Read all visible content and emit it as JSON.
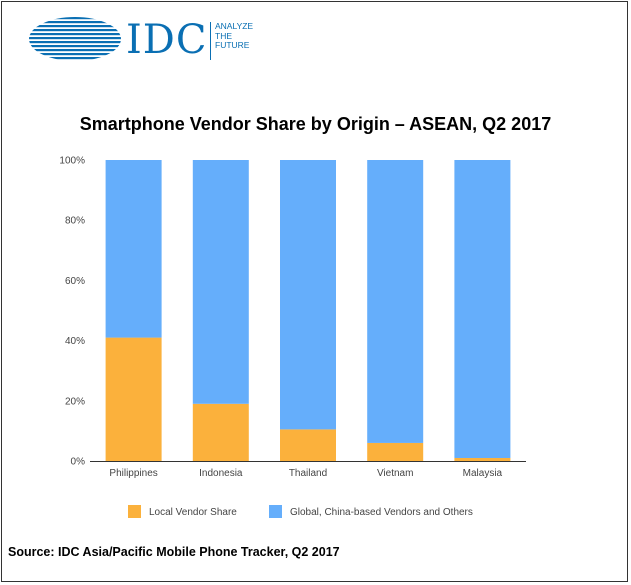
{
  "logo": {
    "brand": "IDC",
    "tagline": [
      "ANALYZE",
      "THE",
      "FUTURE"
    ]
  },
  "source_note": "Source: IDC Asia/Pacific Mobile Phone Tracker, Q2 2017",
  "colors": {
    "local": "#fbb13c",
    "global": "#65aefb",
    "logo_blue": "#0a6fb3"
  },
  "chart_data": {
    "type": "bar",
    "stacked": true,
    "title": "Smartphone Vendor Share by Origin – ASEAN, Q2 2017",
    "xlabel": "",
    "ylabel": "",
    "categories": [
      "Philippines",
      "Indonesia",
      "Thailand",
      "Vietnam",
      "Malaysia"
    ],
    "series": [
      {
        "name": "Local Vendor Share",
        "values": [
          41,
          19,
          10.5,
          6,
          1
        ]
      },
      {
        "name": "Global, China-based Vendors and Others",
        "values": [
          59,
          81,
          89.5,
          94,
          99
        ]
      }
    ],
    "ylim": [
      0,
      100
    ],
    "yticks": [
      "0%",
      "20%",
      "40%",
      "60%",
      "80%",
      "100%"
    ],
    "grid": false,
    "legend_position": "bottom"
  }
}
